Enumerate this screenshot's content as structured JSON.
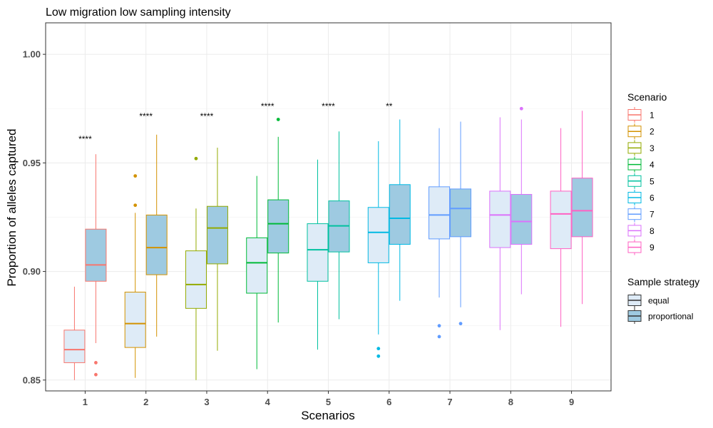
{
  "chart_data": {
    "type": "boxplot",
    "title": "Low migration low sampling intensity",
    "xlabel": "Scenarios",
    "ylabel": "Proportion of alleles captured",
    "ylim": [
      0.845,
      1.0145
    ],
    "y_ticks": [
      0.85,
      0.9,
      0.95,
      1.0
    ],
    "y_tick_labels": [
      "0.85",
      "0.90",
      "0.95",
      "1.00"
    ],
    "categories": [
      "1",
      "2",
      "3",
      "4",
      "5",
      "6",
      "7",
      "8",
      "9"
    ],
    "grid": true,
    "legend_position": "right",
    "scenario_legend": {
      "title": "Scenario",
      "items": [
        {
          "label": "1",
          "color": "#F8766D"
        },
        {
          "label": "2",
          "color": "#D39200"
        },
        {
          "label": "3",
          "color": "#93AA00"
        },
        {
          "label": "4",
          "color": "#00BA38"
        },
        {
          "label": "5",
          "color": "#00C19F"
        },
        {
          "label": "6",
          "color": "#00B9E3"
        },
        {
          "label": "7",
          "color": "#619CFF"
        },
        {
          "label": "8",
          "color": "#DB72FB"
        },
        {
          "label": "9",
          "color": "#FF61C3"
        }
      ]
    },
    "strategy_legend": {
      "title": "Sample strategy",
      "items": [
        {
          "label": "equal",
          "fill": "#deebf7"
        },
        {
          "label": "proportional",
          "fill": "#9ecae1"
        }
      ]
    },
    "significance": [
      {
        "scenario": "1",
        "label": "****",
        "y": 0.961
      },
      {
        "scenario": "2",
        "label": "****",
        "y": 0.9715
      },
      {
        "scenario": "3",
        "label": "****",
        "y": 0.9715
      },
      {
        "scenario": "4",
        "label": "****",
        "y": 0.976
      },
      {
        "scenario": "5",
        "label": "****",
        "y": 0.976
      },
      {
        "scenario": "6",
        "label": "**",
        "y": 0.976
      }
    ],
    "series": [
      {
        "name": "equal",
        "boxes": [
          {
            "scenario": "1",
            "whisker_low": 0.85,
            "q1": 0.858,
            "median": 0.864,
            "q3": 0.873,
            "whisker_high": 0.893,
            "outliers": []
          },
          {
            "scenario": "2",
            "whisker_low": 0.851,
            "q1": 0.865,
            "median": 0.876,
            "q3": 0.8905,
            "whisker_high": 0.927,
            "outliers": [
              0.944,
              0.9305
            ]
          },
          {
            "scenario": "3",
            "whisker_low": 0.85,
            "q1": 0.883,
            "median": 0.894,
            "q3": 0.9095,
            "whisker_high": 0.929,
            "outliers": [
              0.952
            ]
          },
          {
            "scenario": "4",
            "whisker_low": 0.855,
            "q1": 0.89,
            "median": 0.904,
            "q3": 0.9155,
            "whisker_high": 0.944,
            "outliers": []
          },
          {
            "scenario": "5",
            "whisker_low": 0.864,
            "q1": 0.8955,
            "median": 0.91,
            "q3": 0.922,
            "whisker_high": 0.9515,
            "outliers": []
          },
          {
            "scenario": "6",
            "whisker_low": 0.871,
            "q1": 0.904,
            "median": 0.918,
            "q3": 0.9295,
            "whisker_high": 0.96,
            "outliers": [
              0.8645,
              0.861
            ]
          },
          {
            "scenario": "7",
            "whisker_low": 0.888,
            "q1": 0.915,
            "median": 0.926,
            "q3": 0.939,
            "whisker_high": 0.966,
            "outliers": [
              0.875,
              0.87
            ]
          },
          {
            "scenario": "8",
            "whisker_low": 0.873,
            "q1": 0.911,
            "median": 0.926,
            "q3": 0.937,
            "whisker_high": 0.971,
            "outliers": []
          },
          {
            "scenario": "9",
            "whisker_low": 0.8745,
            "q1": 0.9105,
            "median": 0.9265,
            "q3": 0.937,
            "whisker_high": 0.966,
            "outliers": []
          }
        ]
      },
      {
        "name": "proportional",
        "boxes": [
          {
            "scenario": "1",
            "whisker_low": 0.867,
            "q1": 0.8955,
            "median": 0.903,
            "q3": 0.9195,
            "whisker_high": 0.954,
            "outliers": [
              0.858,
              0.8525
            ]
          },
          {
            "scenario": "2",
            "whisker_low": 0.87,
            "q1": 0.8985,
            "median": 0.911,
            "q3": 0.926,
            "whisker_high": 0.963,
            "outliers": []
          },
          {
            "scenario": "3",
            "whisker_low": 0.8635,
            "q1": 0.9035,
            "median": 0.92,
            "q3": 0.93,
            "whisker_high": 0.957,
            "outliers": []
          },
          {
            "scenario": "4",
            "whisker_low": 0.8765,
            "q1": 0.9085,
            "median": 0.922,
            "q3": 0.933,
            "whisker_high": 0.962,
            "outliers": [
              0.97
            ]
          },
          {
            "scenario": "5",
            "whisker_low": 0.878,
            "q1": 0.909,
            "median": 0.921,
            "q3": 0.9325,
            "whisker_high": 0.9645,
            "outliers": []
          },
          {
            "scenario": "6",
            "whisker_low": 0.8865,
            "q1": 0.9125,
            "median": 0.9245,
            "q3": 0.94,
            "whisker_high": 0.97,
            "outliers": []
          },
          {
            "scenario": "7",
            "whisker_low": 0.8835,
            "q1": 0.916,
            "median": 0.929,
            "q3": 0.938,
            "whisker_high": 0.969,
            "outliers": [
              0.876
            ]
          },
          {
            "scenario": "8",
            "whisker_low": 0.8895,
            "q1": 0.9125,
            "median": 0.923,
            "q3": 0.9355,
            "whisker_high": 0.97,
            "outliers": [
              0.975
            ]
          },
          {
            "scenario": "9",
            "whisker_low": 0.885,
            "q1": 0.916,
            "median": 0.928,
            "q3": 0.943,
            "whisker_high": 0.974,
            "outliers": []
          }
        ]
      }
    ]
  }
}
